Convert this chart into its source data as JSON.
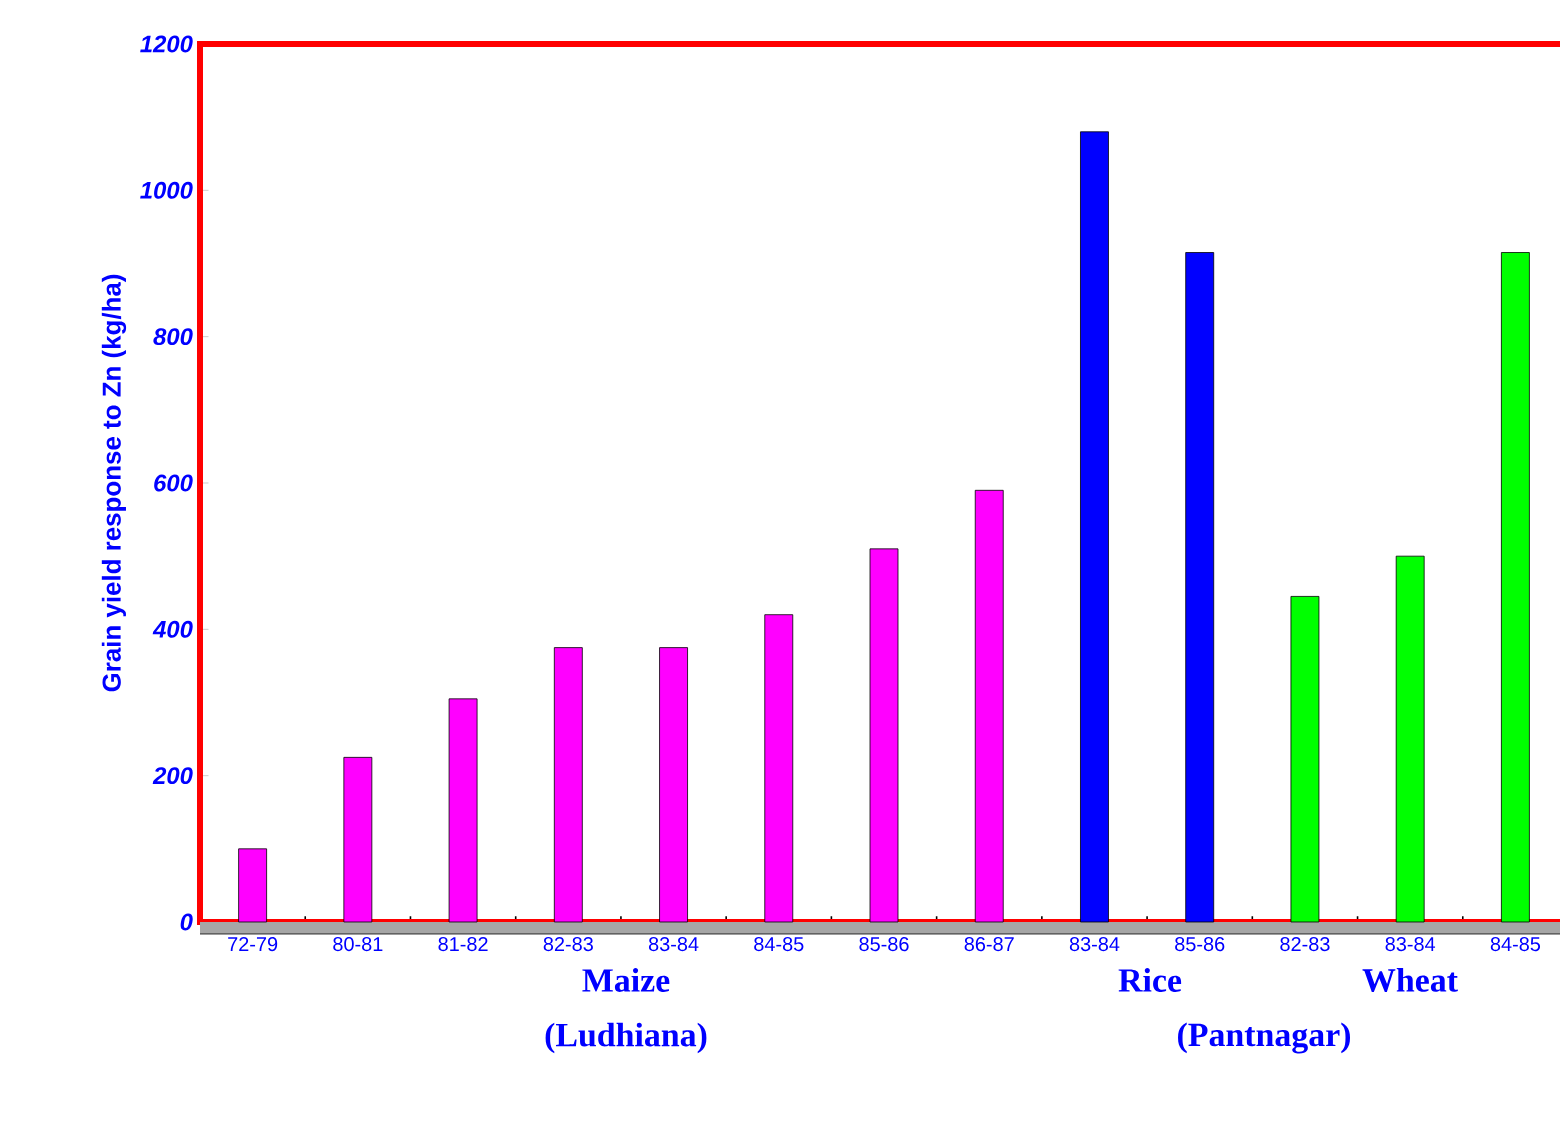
{
  "chart_data": {
    "type": "bar",
    "ylabel": "Grain yield response to Zn (kg/ha)",
    "categories": [
      "72-79",
      "80-81",
      "81-82",
      "82-83",
      "83-84",
      "84-85",
      "85-86",
      "86-87",
      "83-84",
      "85-86",
      "82-83",
      "83-84",
      "84-85"
    ],
    "values": [
      100,
      225,
      305,
      375,
      375,
      420,
      510,
      590,
      1080,
      915,
      445,
      500,
      915
    ],
    "colors": [
      "#ff00ff",
      "#ff00ff",
      "#ff00ff",
      "#ff00ff",
      "#ff00ff",
      "#ff00ff",
      "#ff00ff",
      "#ff00ff",
      "#0000ff",
      "#0000ff",
      "#00ff00",
      "#00ff00",
      "#00ff00"
    ],
    "ylim": [
      0,
      1200
    ],
    "yticks": [
      0,
      200,
      400,
      600,
      800,
      1000,
      1200
    ],
    "grid": false,
    "annotations": [
      "Maize",
      "(Ludhiana)",
      "Rice",
      "(Pantnagar)",
      "Wheat"
    ]
  }
}
